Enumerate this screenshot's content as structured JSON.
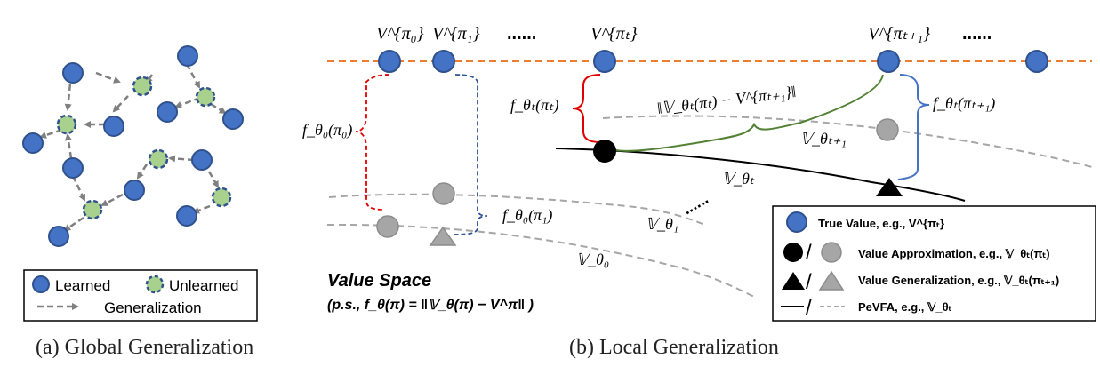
{
  "panel_a": {
    "caption": "(a)  Global Generalization",
    "legend": {
      "learned": "Learned",
      "unlearned": "Unlearned",
      "generalization": "Generalization"
    }
  },
  "panel_b": {
    "caption": "(b)  Local Generalization",
    "top_labels": {
      "v_pi0": "V^{π₀}",
      "v_pi1": "V^{π₁}",
      "dots1": "......",
      "v_pit": "V^{πₜ}",
      "v_pit1": "V^{πₜ₊₁}",
      "dots2": "......"
    },
    "annotations": {
      "f_theta0_pi0": "f_θ₀(π₀)",
      "f_theta0_pi1": "f_θ₀(π₁)",
      "f_thetat_pit": "f_θₜ(πₜ)",
      "f_thetat_pit1": "f_θₜ(πₜ₊₁)",
      "norm": "‖𝕍_θₜ(πₜ) − V^{πₜ₊₁}‖",
      "v_thetat1": "𝕍_θₜ₊₁",
      "v_thetat": "𝕍_θₜ",
      "v_theta1": "𝕍_θ₁",
      "v_theta0": "𝕍_θ₀",
      "dots_mid": "......"
    },
    "value_space": {
      "title": "Value Space",
      "note": "(p.s., f_θ(π) = ‖𝕍_θ(π) − V^π‖ )"
    },
    "legend": {
      "true_value": "True Value, e.g., V^{πₜ}",
      "approx": "Value Approximation, e.g., 𝕍_θₜ(πₜ)",
      "generalization": "Value Generalization, e.g., 𝕍_θₜ(πₜ₊₁)",
      "pevfa": "PeVFA, e.g., 𝕍_θₜ",
      "slash": "/"
    }
  },
  "colors": {
    "blue": "#4472C4",
    "blue_edge": "#2F528F",
    "green": "#A9D18E",
    "orange": "#ED7D31",
    "red": "#E00000",
    "dark_blue": "#2F5597",
    "olive": "#548235",
    "gray": "#A6A6A6"
  }
}
